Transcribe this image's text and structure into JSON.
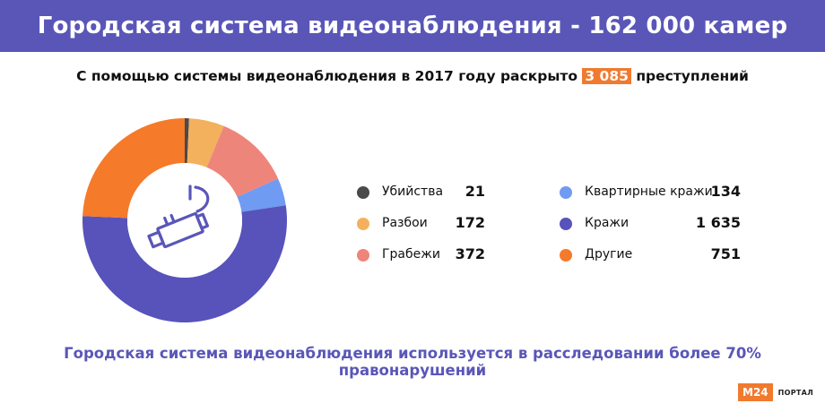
{
  "header": {
    "title": "Городская система видеонаблюдения - 162 000 камер"
  },
  "subtitle": {
    "before": "С помощью системы видеонаблюдения в 2017 году раскрыто ",
    "highlight": "3 085",
    "after": " преступлений"
  },
  "footer": {
    "text": "Городская система видеонаблюдения используется в расследовании более 70% правонарушений"
  },
  "brand": {
    "logo": "M24",
    "label": "ПОРТАЛ"
  },
  "center_icon": "cctv-camera-icon",
  "chart_data": {
    "type": "pie",
    "title": "",
    "start_order": [
      "Убийства",
      "Разбои",
      "Грабежи",
      "Квартирные кражи",
      "Кражи",
      "Другие"
    ],
    "slices": [
      {
        "label": "Убийства",
        "value": 21,
        "display": "21",
        "color": "#4a4a4a"
      },
      {
        "label": "Разбои",
        "value": 172,
        "display": "172",
        "color": "#f3b15e"
      },
      {
        "label": "Грабежи",
        "value": 372,
        "display": "372",
        "color": "#ee857a"
      },
      {
        "label": "Квартирные кражи",
        "value": 134,
        "display": "134",
        "color": "#6f9bf2"
      },
      {
        "label": "Кражи",
        "value": 1635,
        "display": "1 635",
        "color": "#5753bb"
      },
      {
        "label": "Другие",
        "value": 751,
        "display": "751",
        "color": "#f57a2a"
      }
    ],
    "legend_position": "right"
  }
}
